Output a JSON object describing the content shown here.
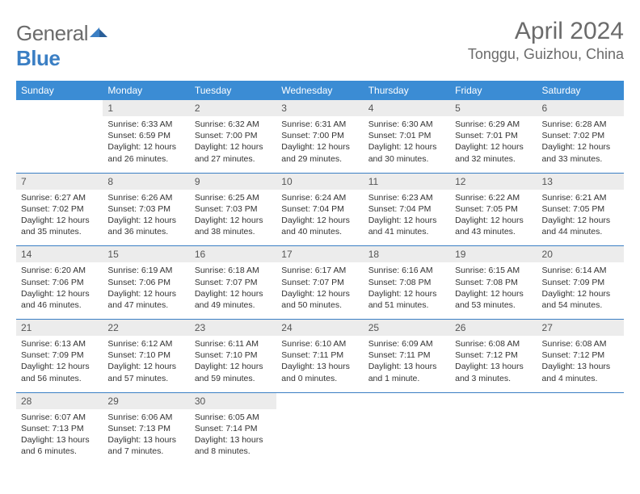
{
  "logo": {
    "part1": "General",
    "part2": "Blue"
  },
  "title": "April 2024",
  "location": "Tonggu, Guizhou, China",
  "weekdays": [
    "Sunday",
    "Monday",
    "Tuesday",
    "Wednesday",
    "Thursday",
    "Friday",
    "Saturday"
  ],
  "colors": {
    "header_bg": "#3b8cd4",
    "rule": "#3b7fc4",
    "daynum_bg": "#ececec",
    "logo_gray": "#6b6b6b",
    "logo_blue": "#3b7fc4"
  },
  "weeks": [
    [
      {
        "n": "",
        "sr": "",
        "ss": "",
        "dl": ""
      },
      {
        "n": "1",
        "sr": "Sunrise: 6:33 AM",
        "ss": "Sunset: 6:59 PM",
        "dl": "Daylight: 12 hours and 26 minutes."
      },
      {
        "n": "2",
        "sr": "Sunrise: 6:32 AM",
        "ss": "Sunset: 7:00 PM",
        "dl": "Daylight: 12 hours and 27 minutes."
      },
      {
        "n": "3",
        "sr": "Sunrise: 6:31 AM",
        "ss": "Sunset: 7:00 PM",
        "dl": "Daylight: 12 hours and 29 minutes."
      },
      {
        "n": "4",
        "sr": "Sunrise: 6:30 AM",
        "ss": "Sunset: 7:01 PM",
        "dl": "Daylight: 12 hours and 30 minutes."
      },
      {
        "n": "5",
        "sr": "Sunrise: 6:29 AM",
        "ss": "Sunset: 7:01 PM",
        "dl": "Daylight: 12 hours and 32 minutes."
      },
      {
        "n": "6",
        "sr": "Sunrise: 6:28 AM",
        "ss": "Sunset: 7:02 PM",
        "dl": "Daylight: 12 hours and 33 minutes."
      }
    ],
    [
      {
        "n": "7",
        "sr": "Sunrise: 6:27 AM",
        "ss": "Sunset: 7:02 PM",
        "dl": "Daylight: 12 hours and 35 minutes."
      },
      {
        "n": "8",
        "sr": "Sunrise: 6:26 AM",
        "ss": "Sunset: 7:03 PM",
        "dl": "Daylight: 12 hours and 36 minutes."
      },
      {
        "n": "9",
        "sr": "Sunrise: 6:25 AM",
        "ss": "Sunset: 7:03 PM",
        "dl": "Daylight: 12 hours and 38 minutes."
      },
      {
        "n": "10",
        "sr": "Sunrise: 6:24 AM",
        "ss": "Sunset: 7:04 PM",
        "dl": "Daylight: 12 hours and 40 minutes."
      },
      {
        "n": "11",
        "sr": "Sunrise: 6:23 AM",
        "ss": "Sunset: 7:04 PM",
        "dl": "Daylight: 12 hours and 41 minutes."
      },
      {
        "n": "12",
        "sr": "Sunrise: 6:22 AM",
        "ss": "Sunset: 7:05 PM",
        "dl": "Daylight: 12 hours and 43 minutes."
      },
      {
        "n": "13",
        "sr": "Sunrise: 6:21 AM",
        "ss": "Sunset: 7:05 PM",
        "dl": "Daylight: 12 hours and 44 minutes."
      }
    ],
    [
      {
        "n": "14",
        "sr": "Sunrise: 6:20 AM",
        "ss": "Sunset: 7:06 PM",
        "dl": "Daylight: 12 hours and 46 minutes."
      },
      {
        "n": "15",
        "sr": "Sunrise: 6:19 AM",
        "ss": "Sunset: 7:06 PM",
        "dl": "Daylight: 12 hours and 47 minutes."
      },
      {
        "n": "16",
        "sr": "Sunrise: 6:18 AM",
        "ss": "Sunset: 7:07 PM",
        "dl": "Daylight: 12 hours and 49 minutes."
      },
      {
        "n": "17",
        "sr": "Sunrise: 6:17 AM",
        "ss": "Sunset: 7:07 PM",
        "dl": "Daylight: 12 hours and 50 minutes."
      },
      {
        "n": "18",
        "sr": "Sunrise: 6:16 AM",
        "ss": "Sunset: 7:08 PM",
        "dl": "Daylight: 12 hours and 51 minutes."
      },
      {
        "n": "19",
        "sr": "Sunrise: 6:15 AM",
        "ss": "Sunset: 7:08 PM",
        "dl": "Daylight: 12 hours and 53 minutes."
      },
      {
        "n": "20",
        "sr": "Sunrise: 6:14 AM",
        "ss": "Sunset: 7:09 PM",
        "dl": "Daylight: 12 hours and 54 minutes."
      }
    ],
    [
      {
        "n": "21",
        "sr": "Sunrise: 6:13 AM",
        "ss": "Sunset: 7:09 PM",
        "dl": "Daylight: 12 hours and 56 minutes."
      },
      {
        "n": "22",
        "sr": "Sunrise: 6:12 AM",
        "ss": "Sunset: 7:10 PM",
        "dl": "Daylight: 12 hours and 57 minutes."
      },
      {
        "n": "23",
        "sr": "Sunrise: 6:11 AM",
        "ss": "Sunset: 7:10 PM",
        "dl": "Daylight: 12 hours and 59 minutes."
      },
      {
        "n": "24",
        "sr": "Sunrise: 6:10 AM",
        "ss": "Sunset: 7:11 PM",
        "dl": "Daylight: 13 hours and 0 minutes."
      },
      {
        "n": "25",
        "sr": "Sunrise: 6:09 AM",
        "ss": "Sunset: 7:11 PM",
        "dl": "Daylight: 13 hours and 1 minute."
      },
      {
        "n": "26",
        "sr": "Sunrise: 6:08 AM",
        "ss": "Sunset: 7:12 PM",
        "dl": "Daylight: 13 hours and 3 minutes."
      },
      {
        "n": "27",
        "sr": "Sunrise: 6:08 AM",
        "ss": "Sunset: 7:12 PM",
        "dl": "Daylight: 13 hours and 4 minutes."
      }
    ],
    [
      {
        "n": "28",
        "sr": "Sunrise: 6:07 AM",
        "ss": "Sunset: 7:13 PM",
        "dl": "Daylight: 13 hours and 6 minutes."
      },
      {
        "n": "29",
        "sr": "Sunrise: 6:06 AM",
        "ss": "Sunset: 7:13 PM",
        "dl": "Daylight: 13 hours and 7 minutes."
      },
      {
        "n": "30",
        "sr": "Sunrise: 6:05 AM",
        "ss": "Sunset: 7:14 PM",
        "dl": "Daylight: 13 hours and 8 minutes."
      },
      {
        "n": "",
        "sr": "",
        "ss": "",
        "dl": ""
      },
      {
        "n": "",
        "sr": "",
        "ss": "",
        "dl": ""
      },
      {
        "n": "",
        "sr": "",
        "ss": "",
        "dl": ""
      },
      {
        "n": "",
        "sr": "",
        "ss": "",
        "dl": ""
      }
    ]
  ]
}
